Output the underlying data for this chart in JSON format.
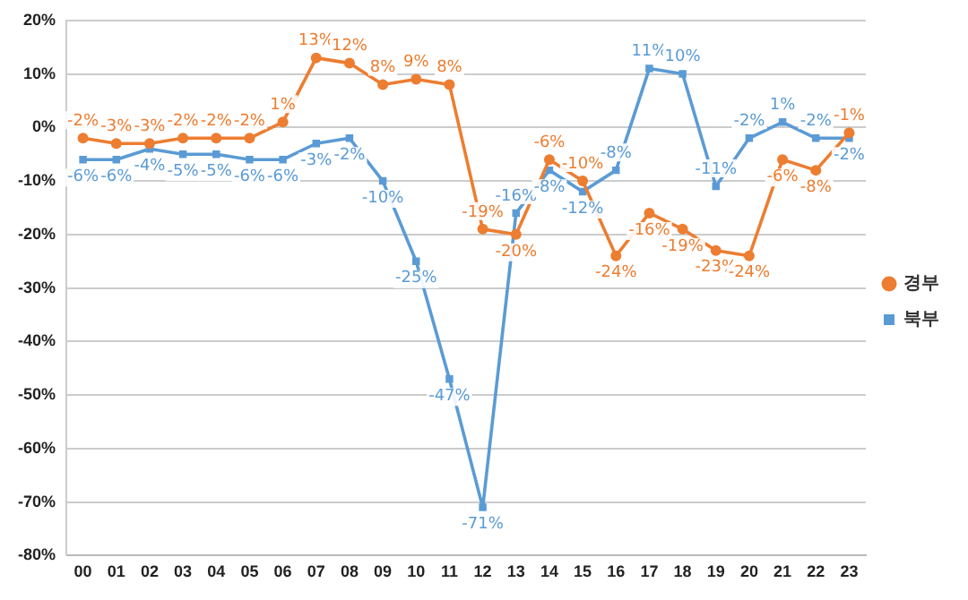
{
  "chart_data": {
    "type": "line",
    "categories": [
      "00",
      "01",
      "02",
      "03",
      "04",
      "05",
      "06",
      "07",
      "08",
      "09",
      "10",
      "11",
      "12",
      "13",
      "14",
      "15",
      "16",
      "17",
      "18",
      "19",
      "20",
      "21",
      "22",
      "23"
    ],
    "series": [
      {
        "name": "경부",
        "color": "#ed7d31",
        "marker": "circle",
        "values": [
          -2,
          -3,
          -3,
          -2,
          -2,
          -2,
          1,
          13,
          12,
          8,
          9,
          8,
          -19,
          -20,
          -6,
          -10,
          -24,
          -16,
          -19,
          -23,
          -24,
          -6,
          -8,
          -1
        ],
        "value_labels": [
          "-2%",
          "-3%",
          "-3%",
          "-2%",
          "-2%",
          "-2%",
          "1%",
          "13%",
          "12%",
          "8%",
          "9%",
          "8%",
          "-19%",
          "-20%",
          "-6%",
          "-10%",
          "-24%",
          "-16%",
          "-19%",
          "-23%",
          "-24%",
          "-6%",
          "-8%",
          "-1%"
        ]
      },
      {
        "name": "북부",
        "color": "#5b9bd5",
        "marker": "square",
        "values": [
          -6,
          -6,
          -4,
          -5,
          -5,
          -6,
          -6,
          -3,
          -2,
          -10,
          -25,
          -47,
          -71,
          -16,
          -8,
          -12,
          -8,
          11,
          10,
          -11,
          -2,
          1,
          -2,
          -2
        ],
        "value_labels": [
          "-6%",
          "-6%",
          "-4%",
          "-5%",
          "-5%",
          "-6%",
          "-6%",
          "-3%",
          "-2%",
          "-10%",
          "-25%",
          "-47%",
          "-71%",
          "-16%",
          "-8%",
          "-12%",
          "-8%",
          "11%",
          "10%",
          "-11%",
          "-2%",
          "1%",
          "-2%",
          "-2%"
        ]
      }
    ],
    "ylim": [
      -80,
      20
    ],
    "yticks": [
      {
        "value": -80,
        "label": "-80%"
      },
      {
        "value": -70,
        "label": "-70%"
      },
      {
        "value": -60,
        "label": "-60%"
      },
      {
        "value": -50,
        "label": "-50%"
      },
      {
        "value": -40,
        "label": "-40%"
      },
      {
        "value": -30,
        "label": "-30%"
      },
      {
        "value": -20,
        "label": "-20%"
      },
      {
        "value": -10,
        "label": "-10%"
      },
      {
        "value": 0,
        "label": "0%"
      },
      {
        "value": 10,
        "label": "10%"
      },
      {
        "value": 20,
        "label": "20%"
      }
    ],
    "grid": "y",
    "legend": "right",
    "line_style": "solid"
  }
}
